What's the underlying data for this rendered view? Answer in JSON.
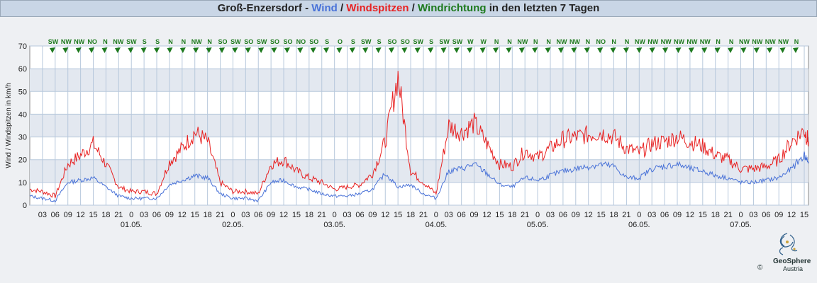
{
  "title": {
    "station": "Groß-Enzersdorf",
    "sep1": " - ",
    "wind": "Wind",
    "sep2": " / ",
    "gusts": "Windspitzen",
    "sep3": " / ",
    "direction": "Windrichtung",
    "suffix": " in den letzten 7 Tagen"
  },
  "colors": {
    "wind": "#4a73d8",
    "gusts": "#e82222",
    "direction": "#1e7a1e"
  },
  "logo": {
    "name": "GeoSphere",
    "sub": "Austria",
    "copyright": "©"
  },
  "chart_data": {
    "type": "line",
    "ylabel": "Wind / Windspitzen in km/h",
    "ylim": [
      0,
      70
    ],
    "yticks": [
      0,
      10,
      20,
      30,
      40,
      50,
      60,
      70
    ],
    "x_hours_range": [
      0,
      184
    ],
    "x_tick_hours": [
      3,
      6,
      9,
      12,
      15,
      18,
      21,
      24,
      27,
      30,
      33,
      36,
      39,
      42,
      45,
      48,
      51,
      54,
      57,
      60,
      63,
      66,
      69,
      72,
      75,
      78,
      81,
      84,
      87,
      90,
      93,
      96,
      99,
      102,
      105,
      108,
      111,
      114,
      117,
      120,
      123,
      126,
      129,
      132,
      135,
      138,
      141,
      144,
      147,
      150,
      153,
      156,
      159,
      162,
      165,
      168,
      171,
      174,
      177,
      180,
      183
    ],
    "x_tick_labels": [
      "03",
      "06",
      "09",
      "12",
      "15",
      "18",
      "21",
      "0",
      "03",
      "06",
      "09",
      "12",
      "15",
      "18",
      "21",
      "0",
      "03",
      "06",
      "09",
      "12",
      "15",
      "18",
      "21",
      "0",
      "03",
      "06",
      "09",
      "12",
      "15",
      "18",
      "21",
      "0",
      "03",
      "06",
      "09",
      "12",
      "15",
      "18",
      "21",
      "0",
      "03",
      "06",
      "09",
      "12",
      "15",
      "18",
      "21",
      "0",
      "03",
      "06",
      "09",
      "12",
      "15",
      "18",
      "21",
      "0",
      "03",
      "06",
      "09",
      "12",
      "15"
    ],
    "date_labels": [
      {
        "hour": 24,
        "label": "01.05."
      },
      {
        "hour": 48,
        "label": "02.05."
      },
      {
        "hour": 72,
        "label": "03.05."
      },
      {
        "hour": 96,
        "label": "04.05."
      },
      {
        "hour": 120,
        "label": "05.05."
      },
      {
        "hour": 144,
        "label": "06.05."
      },
      {
        "hour": 168,
        "label": "07.05."
      }
    ],
    "direction_labels": [
      "SW",
      "NW",
      "NW",
      "NO",
      "N",
      "NW",
      "SW",
      "S",
      "S",
      "N",
      "N",
      "NW",
      "N",
      "SO",
      "SW",
      "SO",
      "SW",
      "SO",
      "SO",
      "NO",
      "SO",
      "S",
      "O",
      "S",
      "SW",
      "S",
      "SO",
      "SO",
      "SW",
      "S",
      "SW",
      "SW",
      "W",
      "W",
      "N",
      "N",
      "NW",
      "N",
      "N",
      "NW",
      "NW",
      "N",
      "NO",
      "N",
      "N",
      "NW",
      "NW",
      "NW",
      "NW",
      "NW",
      "NW",
      "N",
      "N",
      "NW",
      "NW",
      "NW",
      "NW",
      "N"
    ],
    "series": [
      {
        "name": "Wind",
        "x_hours": [
          0,
          3,
          6,
          9,
          12,
          15,
          18,
          21,
          24,
          27,
          30,
          33,
          36,
          39,
          42,
          45,
          48,
          51,
          54,
          57,
          60,
          63,
          66,
          69,
          72,
          75,
          78,
          81,
          84,
          87,
          90,
          93,
          96,
          99,
          102,
          105,
          108,
          111,
          114,
          117,
          120,
          123,
          126,
          129,
          132,
          135,
          138,
          141,
          144,
          147,
          150,
          153,
          156,
          159,
          162,
          165,
          168,
          171,
          174,
          177,
          180,
          183,
          184
        ],
        "values": [
          4,
          3,
          2,
          10,
          11,
          12,
          8,
          4,
          3,
          3,
          3,
          9,
          11,
          13,
          12,
          5,
          3,
          3,
          2,
          10,
          11,
          8,
          7,
          5,
          4,
          4,
          5,
          7,
          14,
          8,
          9,
          5,
          3,
          15,
          16,
          18,
          14,
          9,
          8,
          12,
          11,
          13,
          15,
          16,
          17,
          18,
          17,
          12,
          12,
          16,
          17,
          18,
          16,
          15,
          13,
          12,
          10,
          10,
          11,
          12,
          16,
          22,
          19
        ]
      },
      {
        "name": "Windspitzen",
        "x_hours": [
          0,
          3,
          6,
          9,
          12,
          15,
          18,
          21,
          24,
          27,
          30,
          33,
          36,
          39,
          42,
          45,
          48,
          51,
          54,
          57,
          60,
          63,
          66,
          69,
          72,
          75,
          78,
          81,
          84,
          87,
          90,
          93,
          96,
          99,
          102,
          105,
          108,
          111,
          114,
          117,
          120,
          123,
          126,
          129,
          132,
          135,
          138,
          141,
          144,
          147,
          150,
          153,
          156,
          159,
          162,
          165,
          168,
          171,
          174,
          177,
          180,
          183,
          184
        ],
        "values": [
          7,
          6,
          4,
          18,
          22,
          27,
          18,
          8,
          6,
          6,
          5,
          19,
          25,
          32,
          28,
          10,
          6,
          6,
          5,
          18,
          20,
          15,
          12,
          10,
          7,
          8,
          9,
          14,
          28,
          57,
          15,
          10,
          5,
          35,
          32,
          36,
          27,
          18,
          17,
          24,
          21,
          25,
          29,
          30,
          31,
          32,
          30,
          25,
          23,
          27,
          28,
          30,
          28,
          26,
          22,
          20,
          16,
          16,
          17,
          20,
          28,
          33,
          28
        ]
      }
    ]
  }
}
